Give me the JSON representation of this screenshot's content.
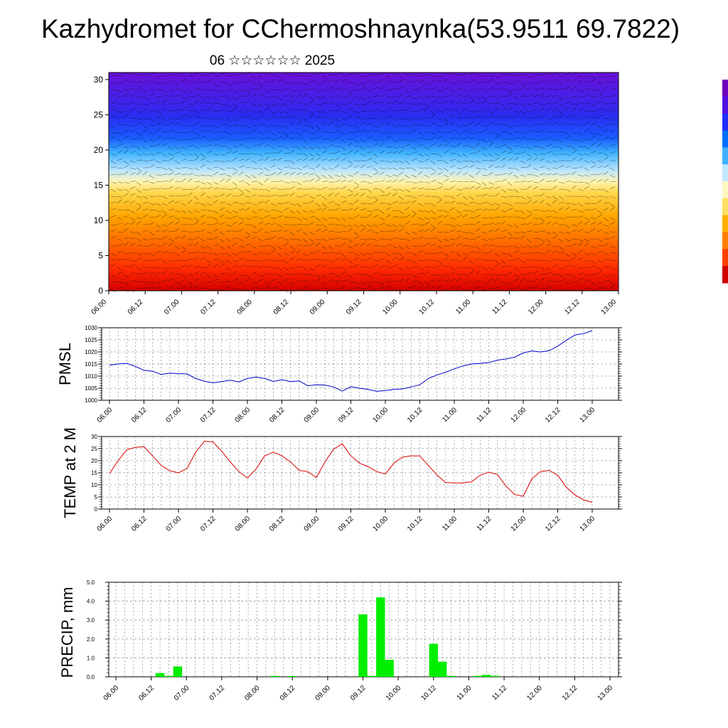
{
  "title": "Kazhydromet for CChermoshnaynka(53.9511 69.7822)",
  "subtitle": "06 ☆☆☆☆☆☆ 2025",
  "chart_data": [
    {
      "type": "heatmap",
      "name": "vertical-profile",
      "y_ticks": [
        "0",
        "5",
        "10",
        "15",
        "20",
        "25",
        "30"
      ],
      "ylim": [
        0,
        31
      ],
      "x_ticks": [
        "06.00",
        "06.12",
        "07.00",
        "07.12",
        "08.00",
        "08.12",
        "09.00",
        "09.12",
        "10.00",
        "10.12",
        "11.00",
        "11.12",
        "12.00",
        "12.12",
        "13.00"
      ],
      "colorbar_colors": [
        "#d00000",
        "#ff4000",
        "#ff8000",
        "#ffb000",
        "#ffe060",
        "#fff8c0",
        "#c0e8ff",
        "#40b0ff",
        "#0070ff",
        "#2030ff",
        "#5010e0",
        "#7000c0"
      ]
    },
    {
      "type": "line",
      "name": "pmsl",
      "ylabel": "PMSL",
      "ylim": [
        1000,
        1030
      ],
      "y_ticks": [
        "1000",
        "1005",
        "1010",
        "1015",
        "1020",
        "1025",
        "1030"
      ],
      "x_ticks": [
        "06.00",
        "06.12",
        "07.00",
        "07.12",
        "08.00",
        "08.12",
        "09.00",
        "09.12",
        "10.00",
        "10.12",
        "11.00",
        "11.12",
        "12.00",
        "12.12",
        "13.00"
      ],
      "color": "#0000cc",
      "values": [
        1014.5,
        1015.0,
        1015.3,
        1014.0,
        1012.4,
        1012.0,
        1010.7,
        1011.2,
        1011.0,
        1010.9,
        1009.0,
        1007.9,
        1007.2,
        1007.7,
        1008.3,
        1007.6,
        1009.0,
        1009.6,
        1009.0,
        1007.8,
        1008.5,
        1007.7,
        1008.0,
        1006.0,
        1006.4,
        1006.3,
        1005.5,
        1003.8,
        1005.6,
        1005.0,
        1004.5,
        1003.7,
        1004.0,
        1004.5,
        1004.7,
        1005.5,
        1006.4,
        1009.0,
        1010.5,
        1011.6,
        1013.0,
        1014.2,
        1015.0,
        1015.3,
        1015.6,
        1016.6,
        1017.1,
        1017.8,
        1019.6,
        1020.4,
        1020.0,
        1020.5,
        1022.4,
        1024.8,
        1027.0,
        1027.6,
        1028.8
      ]
    },
    {
      "type": "line",
      "name": "temp-2m",
      "ylabel": "TEMP at 2 M",
      "ylim": [
        0,
        30
      ],
      "y_ticks": [
        "0",
        "5",
        "10",
        "15",
        "20",
        "25",
        "30"
      ],
      "x_ticks": [
        "06.00",
        "06.12",
        "07.00",
        "07.12",
        "08.00",
        "08.12",
        "09.00",
        "09.12",
        "10.00",
        "10.12",
        "11.00",
        "11.12",
        "12.00",
        "12.12",
        "13.00"
      ],
      "color": "#dd0000",
      "values": [
        14.7,
        20.0,
        24.5,
        25.5,
        25.8,
        22.0,
        18.0,
        15.8,
        15.0,
        16.8,
        23.5,
        28.0,
        27.8,
        24.0,
        19.5,
        15.5,
        12.8,
        16.5,
        22.0,
        23.5,
        22.0,
        19.5,
        16.0,
        15.5,
        13.0,
        19.5,
        24.8,
        27.0,
        22.0,
        19.0,
        17.5,
        15.5,
        14.5,
        19.0,
        21.5,
        22.0,
        22.0,
        18.0,
        14.0,
        11.0,
        10.8,
        10.8,
        11.3,
        14.0,
        15.3,
        14.3,
        9.5,
        6.0,
        5.3,
        12.5,
        15.5,
        16.0,
        14.0,
        9.0,
        5.8,
        3.8,
        2.8
      ]
    },
    {
      "type": "bar",
      "name": "precip",
      "ylabel": "PRECIP, mm",
      "ylim": [
        0,
        5
      ],
      "y_ticks": [
        "0.0",
        "1.0",
        "2.0",
        "3.0",
        "4.0",
        "5.0"
      ],
      "x_ticks": [
        "06.00",
        "06.12",
        "07.00",
        "07.12",
        "08.00",
        "08.12",
        "09.00",
        "09.12",
        "10.00",
        "10.12",
        "11.00",
        "11.12",
        "12.00",
        "12.12",
        "13.00"
      ],
      "color": "#00ee00",
      "values": [
        0,
        0,
        0,
        0,
        0,
        0.2,
        0.05,
        0.55,
        0,
        0,
        0,
        0,
        0,
        0,
        0,
        0,
        0,
        0,
        0.05,
        0,
        0.04,
        0,
        0,
        0,
        0,
        0,
        0,
        0,
        3.3,
        0.05,
        4.2,
        0.9,
        0,
        0,
        0,
        0,
        1.75,
        0.8,
        0.05,
        0,
        0,
        0.05,
        0.1,
        0.05,
        0,
        0,
        0,
        0,
        0,
        0,
        0,
        0,
        0,
        0,
        0,
        0,
        0
      ]
    }
  ]
}
